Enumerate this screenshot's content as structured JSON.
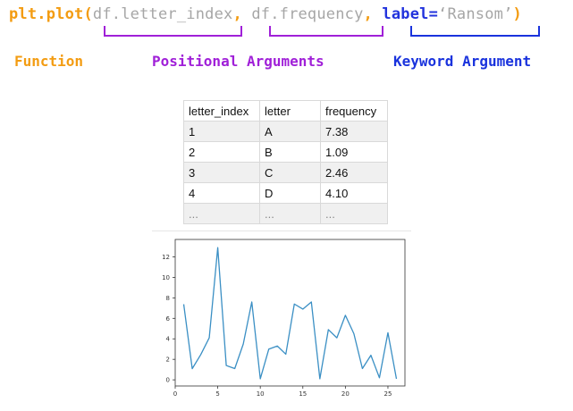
{
  "code": {
    "func": "plt.plot(",
    "arg1": "df.letter_index",
    "sep1": ", ",
    "arg2": "df.frequency",
    "sep2": ", ",
    "kw_name": "label=",
    "kw_value": "‘Ransom’",
    "close": ")"
  },
  "labels": {
    "function": "Function",
    "positional": "Positional Arguments",
    "keyword": "Keyword Argument"
  },
  "colors": {
    "function": "#f39c12",
    "positional": "#a020d8",
    "keyword": "#1a33dd",
    "line": "#3a8fc4"
  },
  "table": {
    "headers": [
      "letter_index",
      "letter",
      "frequency"
    ],
    "rows": [
      [
        "1",
        "A",
        "7.38"
      ],
      [
        "2",
        "B",
        "1.09"
      ],
      [
        "3",
        "C",
        "2.46"
      ],
      [
        "4",
        "D",
        "4.10"
      ],
      [
        "...",
        "...",
        "..."
      ]
    ]
  },
  "chart_data": {
    "type": "line",
    "x": [
      1,
      2,
      3,
      4,
      5,
      6,
      7,
      8,
      9,
      10,
      11,
      12,
      13,
      14,
      15,
      16,
      17,
      18,
      19,
      20,
      21,
      22,
      23,
      24,
      25,
      26
    ],
    "series": [
      {
        "values": [
          7.38,
          1.09,
          2.46,
          4.1,
          12.9,
          1.4,
          1.1,
          3.5,
          7.6,
          0.1,
          3.0,
          3.3,
          2.5,
          7.4,
          6.9,
          7.6,
          0.1,
          4.9,
          4.1,
          6.3,
          4.5,
          1.1,
          2.4,
          0.2,
          4.6,
          0.1
        ]
      }
    ],
    "xlim": [
      0,
      27
    ],
    "ylim": [
      -0.6,
      13.7
    ],
    "xticks": [
      0,
      5,
      10,
      15,
      20,
      25
    ],
    "yticks": [
      0,
      2,
      4,
      6,
      8,
      10,
      12
    ],
    "grid": false
  }
}
